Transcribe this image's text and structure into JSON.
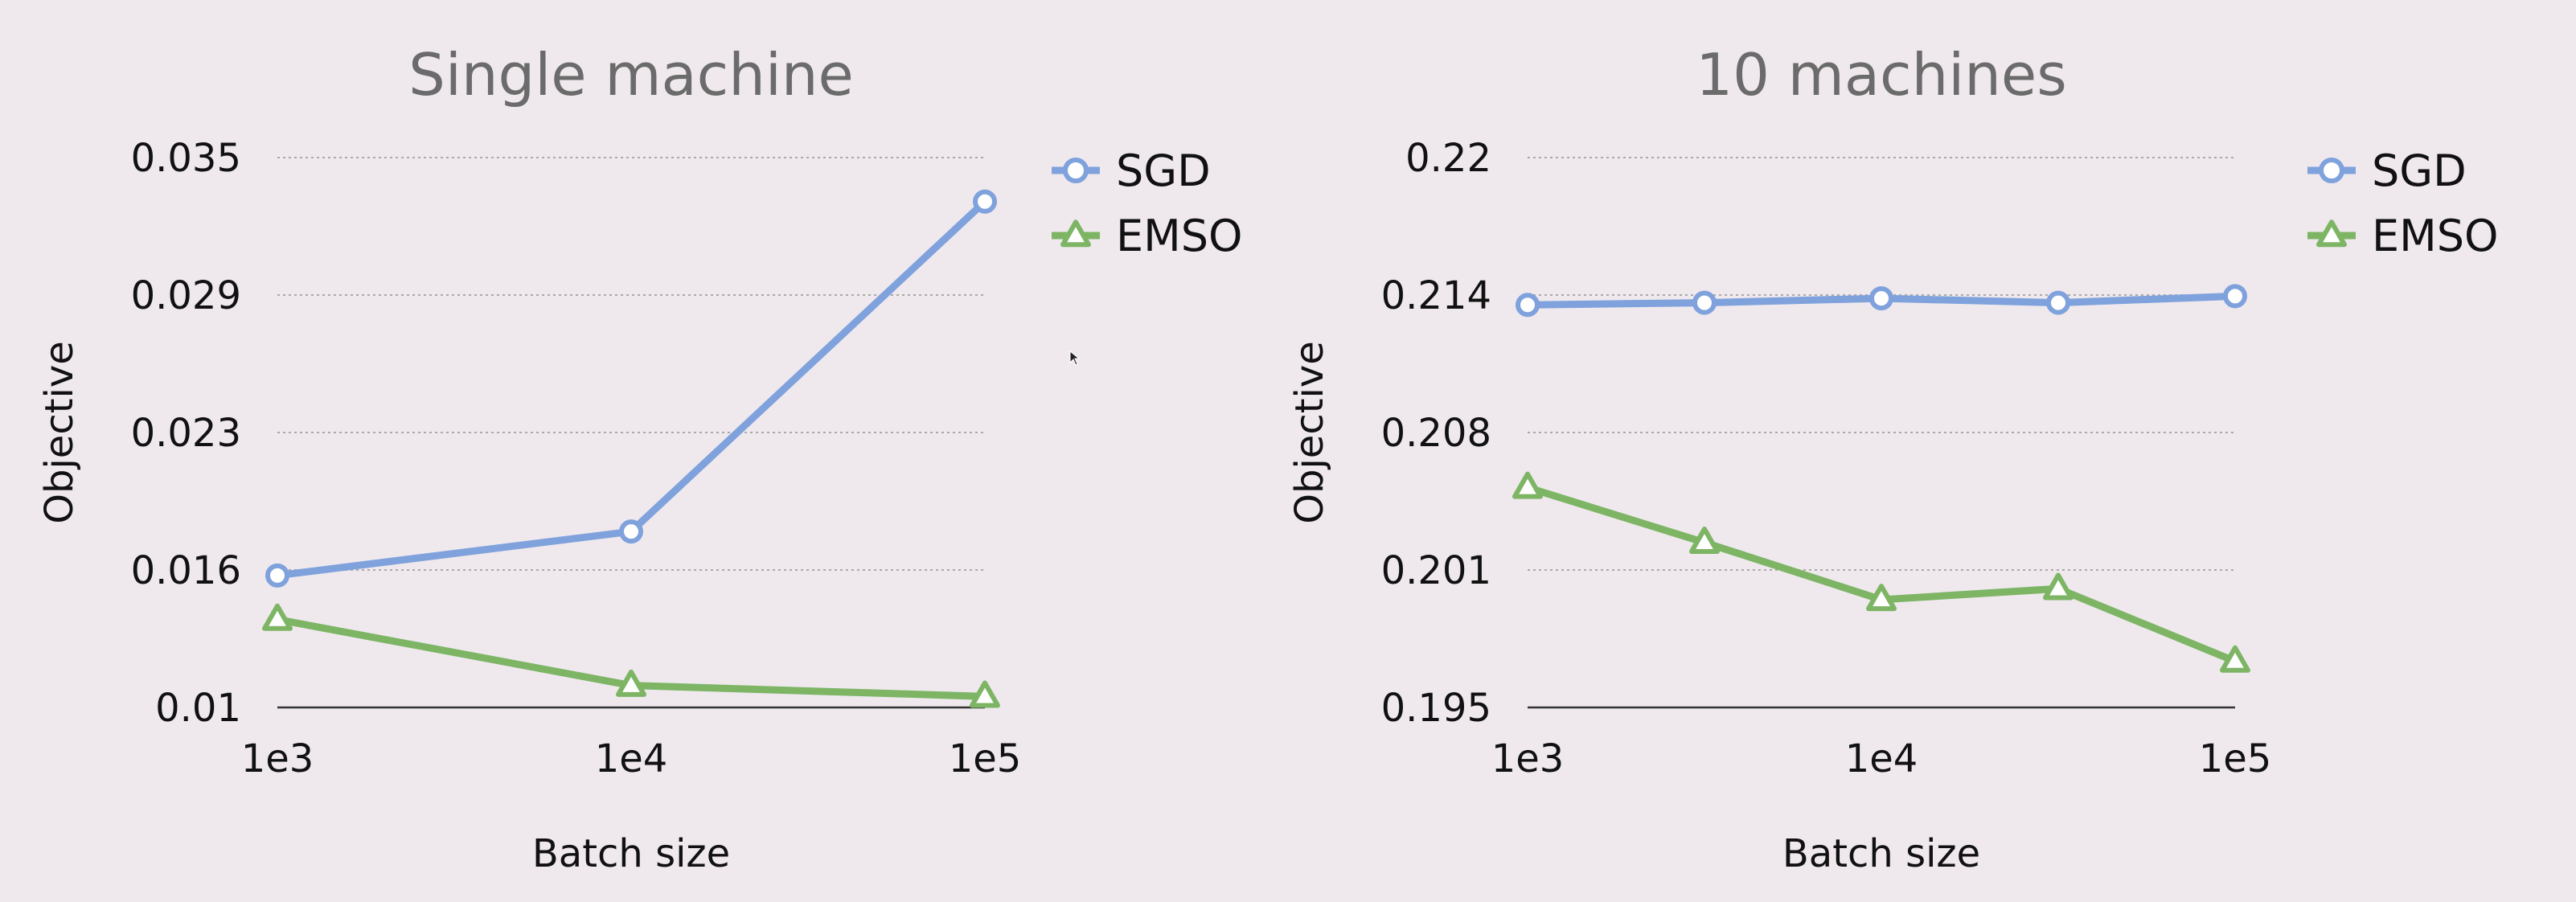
{
  "colors": {
    "sgd": "#7fa2dc",
    "emso": "#7db565",
    "background": "#efe9ee"
  },
  "chart_data": [
    {
      "type": "line",
      "title": "Single machine",
      "xlabel": "Batch size",
      "ylabel": "Objective",
      "x_scale": "log",
      "x_ticks": [
        "1e3",
        "1e4",
        "1e5"
      ],
      "y_ticks": [
        "0.035",
        "0.029",
        "0.023",
        "0.016",
        "0.01"
      ],
      "xlim": [
        1000,
        100000
      ],
      "ylim": [
        0.01,
        0.035
      ],
      "grid": true,
      "legend": "top-right, outside plot",
      "series": [
        {
          "name": "SGD",
          "marker": "circle",
          "x": [
            1000,
            10000,
            100000
          ],
          "y": [
            0.016,
            0.018,
            0.033
          ]
        },
        {
          "name": "EMSO",
          "marker": "triangle",
          "x": [
            1000,
            10000,
            100000
          ],
          "y": [
            0.014,
            0.011,
            0.0105
          ]
        }
      ]
    },
    {
      "type": "line",
      "title": "10 machines",
      "xlabel": "Batch size",
      "ylabel": "Objective",
      "x_scale": "log",
      "x_ticks": [
        "1e3",
        "1e4",
        "1e5"
      ],
      "y_ticks": [
        "0.22",
        "0.214",
        "0.208",
        "0.201",
        "0.195"
      ],
      "xlim": [
        1000,
        100000
      ],
      "ylim": [
        0.195,
        0.22
      ],
      "grid": true,
      "legend": "top-right, outside plot",
      "series": [
        {
          "name": "SGD",
          "marker": "circle",
          "x": [
            1000,
            3162,
            10000,
            31623,
            100000
          ],
          "y": [
            0.2133,
            0.2134,
            0.2136,
            0.2134,
            0.2137
          ]
        },
        {
          "name": "EMSO",
          "marker": "triangle",
          "x": [
            1000,
            3162,
            10000,
            31623,
            100000
          ],
          "y": [
            0.205,
            0.2025,
            0.1999,
            0.2004,
            0.1971
          ]
        }
      ]
    }
  ]
}
